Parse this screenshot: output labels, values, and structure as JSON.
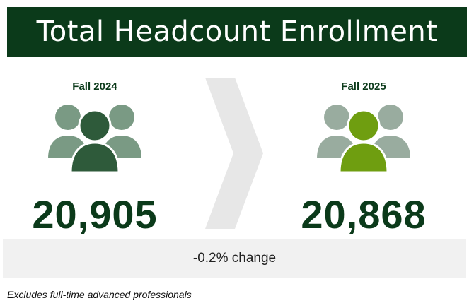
{
  "header": {
    "title": "Total Headcount Enrollment"
  },
  "left": {
    "period": "Fall 2024",
    "count": "20,905",
    "icon": "people-group-icon",
    "main_color": "#2e5a3a",
    "side_color": "#7a9a84"
  },
  "right": {
    "period": "Fall 2025",
    "count": "20,868",
    "icon": "people-group-icon",
    "main_color": "#6f9e10",
    "side_color": "#99ac9f"
  },
  "change": {
    "text": "-0.2% change"
  },
  "footnote": "Excludes full-time advanced professionals",
  "colors": {
    "banner": "#0b3a1a",
    "chevron": "#e7e7e7",
    "change_bar": "#f1f1f1"
  }
}
